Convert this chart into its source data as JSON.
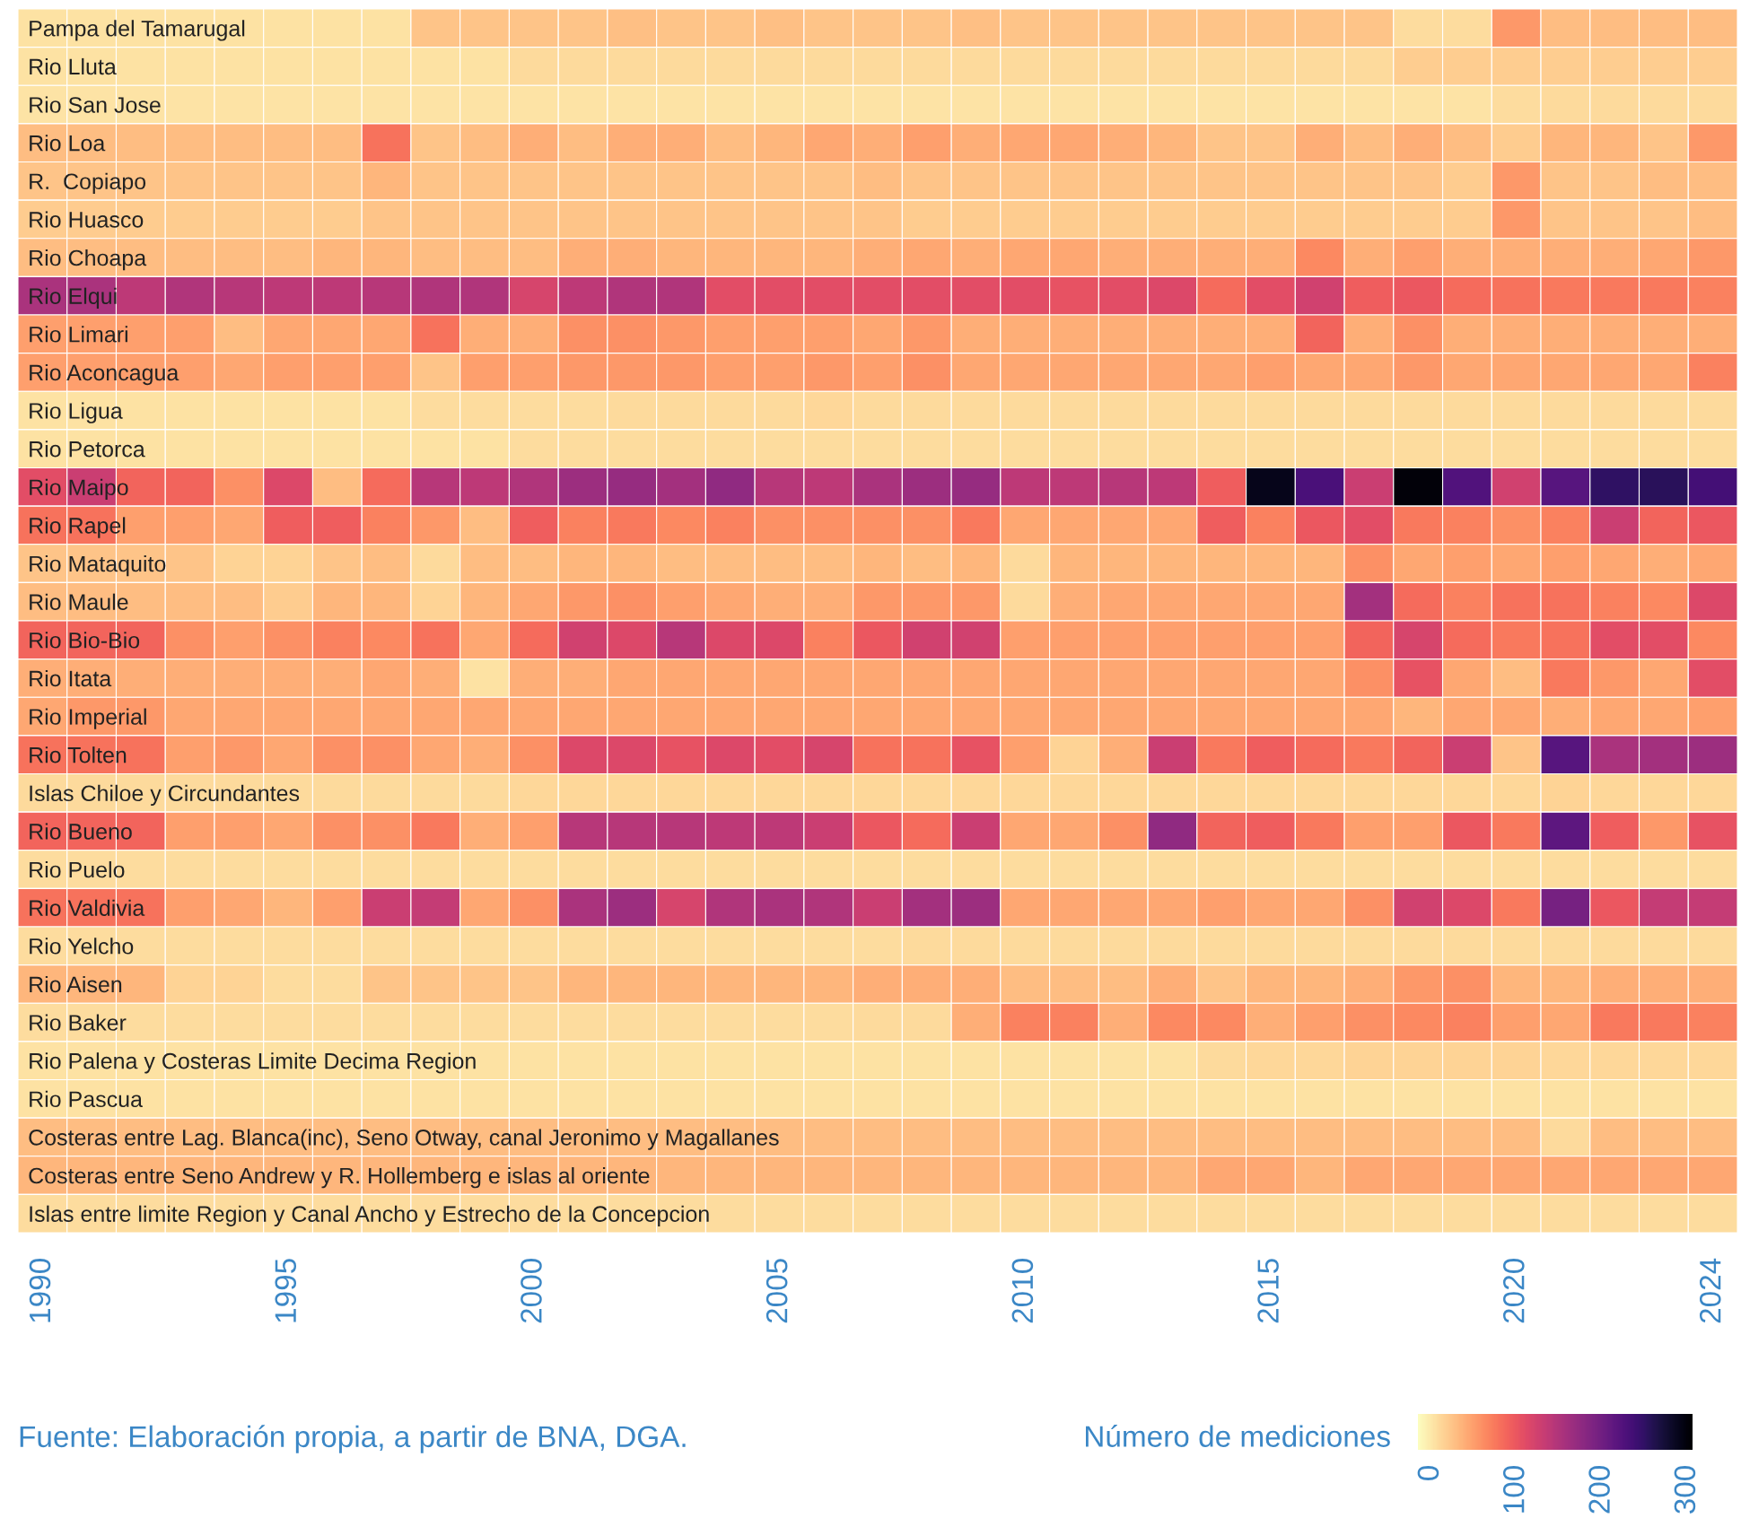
{
  "chart_data": {
    "type": "heatmap",
    "categories": [
      "1990",
      null,
      null,
      null,
      null,
      "1995",
      null,
      null,
      null,
      null,
      "2000",
      null,
      null,
      null,
      null,
      "2005",
      null,
      null,
      null,
      null,
      "2010",
      null,
      null,
      null,
      null,
      "2015",
      null,
      null,
      null,
      null,
      "2020",
      null,
      null,
      null,
      "2024"
    ],
    "y_categories": [
      "Pampa del Tamarugal",
      "Rio Lluta",
      "Rio San Jose",
      "Rio Loa",
      "R.  Copiapo",
      "Rio Huasco",
      "Rio Choapa",
      "Rio Elqui",
      "Rio Limari",
      "Rio Aconcagua",
      "Rio Ligua",
      "Rio Petorca",
      "Rio Maipo",
      "Rio Rapel",
      "Rio Mataquito",
      "Rio Maule",
      "Rio Bio-Bio",
      "Rio Itata",
      "Rio Imperial",
      "Rio Tolten",
      "Islas Chiloe y Circundantes",
      "Rio Bueno",
      "Rio Puelo",
      "Rio Valdivia",
      "Rio Yelcho",
      "Rio Aisen",
      "Rio Baker",
      "Rio Palena y Costeras Limite Decima Region",
      "Rio Pascua",
      "Costeras entre Lag. Blanca(inc), Seno Otway, canal Jeronimo y Magallanes",
      "Costeras entre Seno Andrew y R. Hollemberg e islas al oriente",
      "Islas entre limite Region y Canal Ancho y Estrecho de la Concepcion"
    ],
    "cells": [
      [
        5,
        5,
        5,
        5,
        5,
        5,
        5,
        5,
        25,
        25,
        25,
        25,
        28,
        25,
        25,
        28,
        25,
        25,
        25,
        28,
        25,
        25,
        25,
        25,
        25,
        25,
        25,
        25,
        8,
        8,
        55,
        30,
        30,
        30,
        30
      ],
      [
        5,
        5,
        5,
        5,
        5,
        5,
        5,
        5,
        5,
        5,
        10,
        10,
        10,
        10,
        10,
        10,
        10,
        10,
        10,
        10,
        10,
        10,
        10,
        10,
        10,
        10,
        10,
        10,
        18,
        18,
        18,
        18,
        18,
        18,
        18
      ],
      [
        3,
        3,
        3,
        3,
        3,
        3,
        3,
        3,
        3,
        3,
        3,
        3,
        3,
        3,
        3,
        3,
        3,
        3,
        3,
        3,
        3,
        3,
        3,
        3,
        3,
        3,
        3,
        3,
        3,
        3,
        8,
        10,
        10,
        10,
        10
      ],
      [
        30,
        30,
        30,
        30,
        30,
        30,
        30,
        80,
        25,
        30,
        40,
        30,
        40,
        40,
        30,
        35,
        45,
        40,
        50,
        40,
        45,
        45,
        40,
        35,
        25,
        25,
        40,
        30,
        40,
        30,
        20,
        35,
        35,
        25,
        55
      ],
      [
        25,
        25,
        25,
        25,
        25,
        25,
        25,
        35,
        25,
        25,
        25,
        25,
        25,
        25,
        25,
        25,
        25,
        30,
        25,
        25,
        25,
        25,
        25,
        25,
        25,
        25,
        25,
        25,
        25,
        20,
        55,
        25,
        25,
        30,
        30
      ],
      [
        20,
        20,
        20,
        20,
        20,
        20,
        20,
        25,
        25,
        25,
        25,
        25,
        25,
        25,
        25,
        25,
        25,
        25,
        20,
        20,
        20,
        20,
        20,
        20,
        20,
        20,
        20,
        20,
        20,
        20,
        55,
        25,
        25,
        25,
        30
      ],
      [
        30,
        30,
        30,
        30,
        30,
        30,
        35,
        35,
        30,
        30,
        30,
        40,
        40,
        35,
        35,
        35,
        35,
        40,
        45,
        40,
        45,
        45,
        40,
        40,
        40,
        40,
        65,
        40,
        50,
        40,
        40,
        40,
        40,
        45,
        55
      ],
      [
        155,
        155,
        140,
        150,
        145,
        140,
        140,
        145,
        150,
        150,
        120,
        140,
        150,
        150,
        110,
        110,
        110,
        110,
        110,
        110,
        110,
        105,
        110,
        115,
        85,
        110,
        125,
        95,
        100,
        85,
        80,
        75,
        75,
        75,
        70
      ],
      [
        50,
        50,
        50,
        50,
        30,
        45,
        45,
        45,
        80,
        40,
        40,
        60,
        60,
        55,
        50,
        50,
        50,
        45,
        55,
        40,
        40,
        40,
        40,
        40,
        40,
        40,
        90,
        40,
        60,
        40,
        40,
        40,
        40,
        40,
        40
      ],
      [
        50,
        50,
        50,
        50,
        45,
        50,
        50,
        50,
        25,
        50,
        50,
        55,
        55,
        55,
        50,
        50,
        55,
        50,
        60,
        45,
        45,
        45,
        45,
        45,
        45,
        50,
        45,
        45,
        55,
        45,
        45,
        45,
        45,
        45,
        70
      ],
      [
        5,
        5,
        5,
        5,
        5,
        5,
        5,
        5,
        8,
        8,
        8,
        8,
        10,
        10,
        10,
        10,
        12,
        10,
        10,
        10,
        10,
        10,
        10,
        10,
        10,
        10,
        10,
        10,
        10,
        10,
        10,
        10,
        10,
        10,
        10
      ],
      [
        5,
        5,
        5,
        5,
        5,
        5,
        5,
        5,
        5,
        5,
        8,
        8,
        8,
        8,
        8,
        8,
        8,
        8,
        8,
        8,
        8,
        8,
        8,
        8,
        8,
        8,
        8,
        8,
        8,
        8,
        8,
        8,
        8,
        8,
        8
      ],
      [
        110,
        130,
        90,
        90,
        60,
        115,
        30,
        85,
        145,
        140,
        150,
        165,
        170,
        160,
        175,
        145,
        140,
        155,
        165,
        170,
        140,
        140,
        145,
        140,
        95,
        290,
        230,
        130,
        300,
        225,
        125,
        220,
        250,
        255,
        235
      ],
      [
        80,
        80,
        50,
        50,
        45,
        95,
        95,
        70,
        55,
        30,
        95,
        70,
        75,
        65,
        70,
        60,
        60,
        60,
        60,
        75,
        45,
        45,
        45,
        45,
        95,
        70,
        100,
        110,
        75,
        70,
        60,
        70,
        130,
        90,
        100
      ],
      [
        25,
        25,
        25,
        25,
        15,
        15,
        25,
        30,
        10,
        30,
        30,
        35,
        35,
        30,
        30,
        30,
        30,
        35,
        30,
        35,
        10,
        35,
        35,
        35,
        35,
        35,
        35,
        60,
        45,
        50,
        45,
        50,
        45,
        40,
        45
      ],
      [
        30,
        30,
        30,
        30,
        30,
        20,
        35,
        35,
        15,
        35,
        45,
        55,
        60,
        50,
        45,
        40,
        40,
        55,
        55,
        55,
        10,
        40,
        45,
        45,
        45,
        45,
        45,
        160,
        85,
        70,
        80,
        80,
        70,
        65,
        115
      ],
      [
        90,
        90,
        90,
        60,
        50,
        60,
        70,
        65,
        80,
        45,
        85,
        125,
        115,
        145,
        115,
        115,
        70,
        100,
        125,
        125,
        50,
        50,
        50,
        50,
        50,
        50,
        50,
        90,
        120,
        85,
        75,
        80,
        110,
        110,
        65
      ],
      [
        40,
        40,
        40,
        40,
        40,
        40,
        40,
        45,
        40,
        5,
        40,
        40,
        45,
        45,
        45,
        45,
        45,
        45,
        45,
        45,
        45,
        45,
        45,
        45,
        45,
        45,
        45,
        60,
        105,
        45,
        30,
        75,
        55,
        45,
        110
      ],
      [
        45,
        55,
        55,
        45,
        45,
        45,
        45,
        45,
        45,
        45,
        45,
        45,
        45,
        45,
        45,
        45,
        45,
        45,
        45,
        45,
        45,
        45,
        45,
        45,
        45,
        45,
        45,
        45,
        35,
        45,
        45,
        40,
        45,
        45,
        50
      ],
      [
        80,
        80,
        80,
        50,
        55,
        45,
        60,
        60,
        45,
        40,
        60,
        115,
        115,
        105,
        115,
        110,
        120,
        80,
        80,
        105,
        50,
        15,
        40,
        130,
        75,
        95,
        85,
        75,
        90,
        130,
        25,
        220,
        155,
        160,
        165
      ],
      [
        10,
        10,
        10,
        10,
        10,
        10,
        10,
        10,
        10,
        10,
        12,
        12,
        12,
        12,
        12,
        12,
        12,
        12,
        12,
        12,
        12,
        12,
        12,
        12,
        12,
        12,
        12,
        12,
        12,
        12,
        12,
        15,
        12,
        12,
        12
      ],
      [
        90,
        90,
        90,
        50,
        50,
        45,
        60,
        60,
        75,
        40,
        50,
        145,
        145,
        145,
        140,
        140,
        130,
        100,
        85,
        130,
        45,
        45,
        60,
        175,
        90,
        95,
        75,
        50,
        50,
        100,
        75,
        215,
        95,
        55,
        105
      ],
      [
        8,
        8,
        8,
        8,
        8,
        8,
        8,
        8,
        8,
        8,
        8,
        8,
        8,
        8,
        8,
        8,
        8,
        8,
        8,
        8,
        8,
        8,
        8,
        8,
        8,
        8,
        8,
        8,
        8,
        8,
        8,
        8,
        8,
        8,
        8
      ],
      [
        80,
        80,
        80,
        50,
        45,
        35,
        50,
        130,
        135,
        45,
        60,
        155,
        165,
        120,
        150,
        155,
        150,
        130,
        160,
        165,
        45,
        45,
        45,
        45,
        50,
        45,
        45,
        60,
        125,
        115,
        75,
        195,
        100,
        135,
        135
      ],
      [
        8,
        8,
        8,
        8,
        8,
        8,
        8,
        8,
        8,
        8,
        8,
        8,
        8,
        8,
        8,
        8,
        8,
        8,
        10,
        10,
        10,
        10,
        10,
        10,
        10,
        10,
        10,
        10,
        10,
        10,
        10,
        10,
        10,
        10,
        10
      ],
      [
        35,
        35,
        35,
        15,
        15,
        8,
        8,
        25,
        25,
        25,
        25,
        35,
        35,
        35,
        35,
        35,
        35,
        40,
        40,
        40,
        30,
        30,
        30,
        40,
        25,
        35,
        35,
        40,
        55,
        60,
        35,
        35,
        40,
        40,
        40
      ],
      [
        8,
        8,
        8,
        8,
        8,
        8,
        8,
        8,
        8,
        8,
        8,
        8,
        8,
        8,
        8,
        8,
        8,
        10,
        10,
        40,
        70,
        70,
        40,
        65,
        65,
        40,
        50,
        60,
        65,
        70,
        50,
        45,
        75,
        75,
        70
      ],
      [
        5,
        5,
        5,
        5,
        5,
        5,
        5,
        5,
        5,
        5,
        5,
        5,
        5,
        5,
        5,
        5,
        5,
        5,
        5,
        5,
        5,
        5,
        5,
        5,
        10,
        12,
        12,
        15,
        15,
        15,
        15,
        12,
        12,
        12,
        12
      ],
      [
        4,
        4,
        4,
        4,
        4,
        4,
        4,
        4,
        4,
        4,
        4,
        4,
        4,
        4,
        4,
        4,
        4,
        4,
        4,
        4,
        4,
        4,
        4,
        4,
        4,
        4,
        4,
        4,
        4,
        4,
        4,
        4,
        4,
        4,
        4
      ],
      [
        30,
        30,
        30,
        30,
        30,
        30,
        30,
        30,
        30,
        30,
        30,
        30,
        30,
        30,
        30,
        30,
        30,
        30,
        30,
        30,
        30,
        30,
        30,
        30,
        30,
        30,
        30,
        30,
        30,
        30,
        30,
        10,
        30,
        30,
        30
      ],
      [
        35,
        35,
        35,
        35,
        35,
        35,
        35,
        35,
        35,
        35,
        35,
        35,
        35,
        35,
        35,
        35,
        35,
        35,
        35,
        35,
        35,
        35,
        35,
        35,
        45,
        45,
        35,
        45,
        45,
        45,
        45,
        45,
        45,
        45,
        45
      ],
      [
        8,
        8,
        8,
        8,
        8,
        8,
        8,
        8,
        8,
        8,
        8,
        8,
        8,
        8,
        8,
        8,
        8,
        8,
        8,
        8,
        8,
        8,
        8,
        8,
        8,
        8,
        8,
        8,
        8,
        8,
        8,
        8,
        8,
        8,
        8
      ]
    ],
    "clabel": "Número de mediciones",
    "clim": [
      -15,
      306
    ],
    "cticks": [
      0,
      100,
      200,
      300
    ],
    "annotations": [
      "Fuente: Elaboración propia, a partir de BNA, DGA."
    ]
  }
}
